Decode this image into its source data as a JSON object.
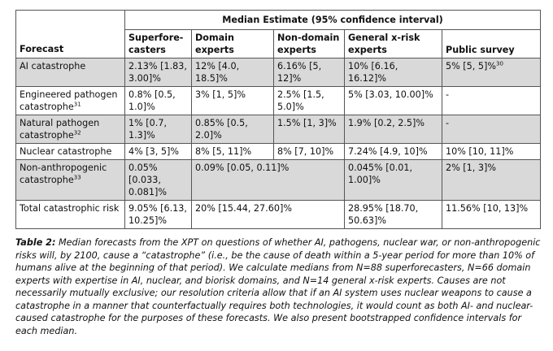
{
  "table": {
    "group_header": "Median Estimate (95% confidence interval)",
    "first_col_header": "Forecast",
    "columns": [
      "Superfore-casters",
      "Domain experts",
      "Non-domain experts",
      "General x-risk experts",
      "Public survey"
    ],
    "rows": [
      {
        "label": "AI catastrophe",
        "sup": "",
        "cells": [
          "2.13% [1.83, 3.00]%",
          "12% [4.0, 18.5]%",
          "6.16% [5, 12]%",
          "10% [6.16, 16.12]%",
          "5% [5, 5]%"
        ],
        "last_sup": "30",
        "shade": true
      },
      {
        "label": "Engineered pathogen catastrophe",
        "sup": "31",
        "cells": [
          "0.8% [0.5, 1.0]%",
          "3% [1, 5]%",
          "2.5% [1.5, 5.0]%",
          "5% [3.03, 10.00]%",
          "-"
        ],
        "last_sup": "",
        "shade": false
      },
      {
        "label": "Natural pathogen catastrophe",
        "sup": "32",
        "cells": [
          "1% [0.7, 1.3]%",
          "0.85% [0.5, 2.0]%",
          "1.5% [1, 3]%",
          "1.9% [0.2, 2.5]%",
          "-"
        ],
        "last_sup": "",
        "shade": true
      },
      {
        "label": "Nuclear catastrophe",
        "sup": "",
        "cells": [
          "4% [3, 5]%",
          "8% [5, 11]%",
          "8% [7, 10]%",
          "7.24% [4.9, 10]%",
          "10% [10, 11]%"
        ],
        "last_sup": "",
        "shade": false
      },
      {
        "label": "Non-anthropogenic catastrophe",
        "sup": "33",
        "cells": [
          "0.05% [0.033, 0.081]%",
          "0.09% [0.05, 0.11]%",
          "0.045% [0.01, 1.00]%",
          "2% [1, 3]%"
        ],
        "last_sup": "",
        "shade": true,
        "merged_domain": true
      },
      {
        "label": "Total catastrophic risk",
        "sup": "",
        "cells": [
          "9.05% [6.13, 10.25]%",
          "20% [15.44, 27.60]%",
          "28.95% [18.70, 50.63]%",
          "11.56% [10, 13]%"
        ],
        "last_sup": "",
        "shade": false,
        "merged_domain": true
      }
    ]
  },
  "caption": {
    "label": "Table 2:",
    "text": " Median forecasts from the XPT on questions of whether AI, pathogens, nuclear war, or non-anthropogenic risks will, by 2100, cause a “catastrophe” (i.e., be the cause of death within a 5-year period for more than 10% of humans alive at the beginning of that period). We calculate medians from N=88 superforecasters, N=66 domain experts with expertise in AI, nuclear, and biorisk domains, and N=14 general x-risk experts. Causes are not necessarily mutually exclusive; our resolution criteria allow that if an AI system uses nuclear weapons to cause a catastrophe in a manner that counterfactually requires both technologies, it would count as both AI- and nuclear-caused catastrophe for the purposes of these forecasts. We also present bootstrapped confidence intervals for each median."
  }
}
